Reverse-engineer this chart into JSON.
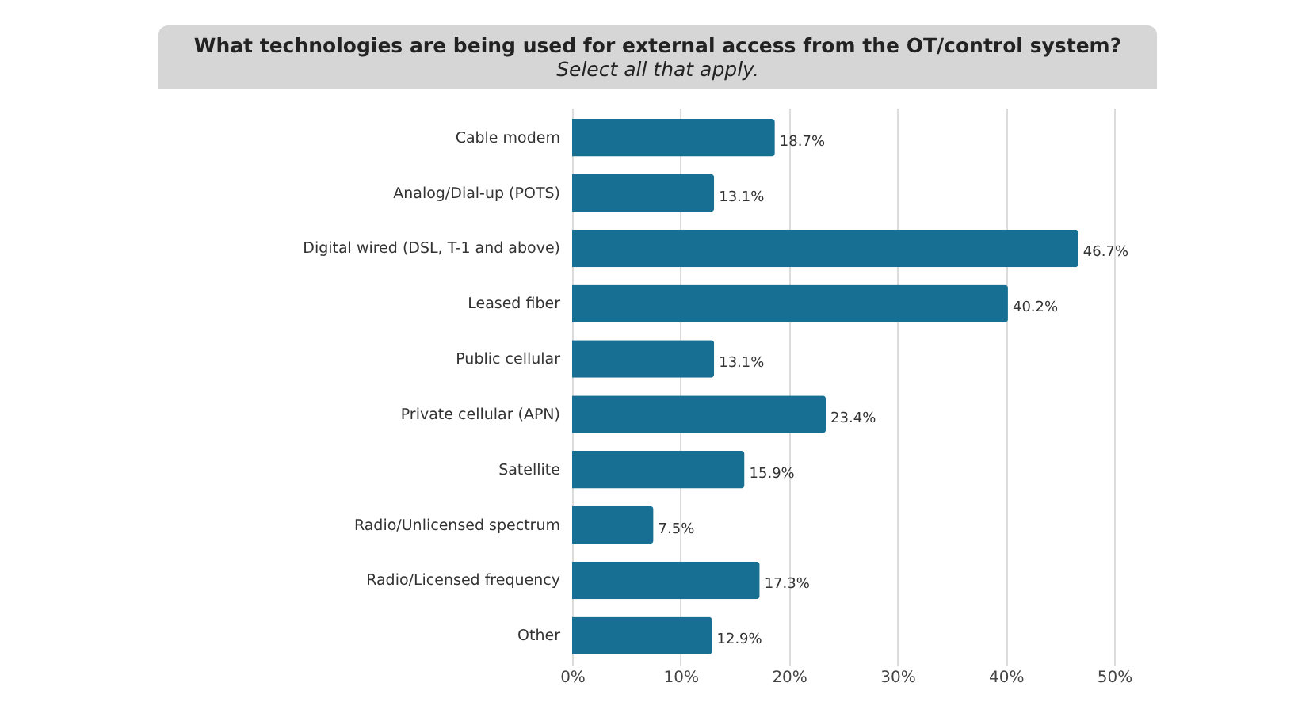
{
  "chart_data": {
    "type": "bar",
    "orientation": "horizontal",
    "title": "What technologies are being used for external access from the OT/control system?",
    "subtitle": "Select all that apply.",
    "categories": [
      "Cable modem",
      "Analog/Dial-up (POTS)",
      "Digital wired (DSL, T-1 and above)",
      "Leased fiber",
      "Public cellular",
      "Private cellular (APN)",
      "Satellite",
      "Radio/Unlicensed spectrum",
      "Radio/Licensed frequency",
      "Other"
    ],
    "values": [
      18.7,
      13.1,
      46.7,
      40.2,
      13.1,
      23.4,
      15.9,
      7.5,
      17.3,
      12.9
    ],
    "value_labels": [
      "18.7%",
      "13.1%",
      "46.7%",
      "40.2%",
      "13.1%",
      "23.4%",
      "15.9%",
      "7.5%",
      "17.3%",
      "12.9%"
    ],
    "color": "#176f93",
    "xlim": [
      0,
      50
    ],
    "xticks": [
      {
        "value": 0,
        "label": "0%"
      },
      {
        "value": 10,
        "label": "10%"
      },
      {
        "value": 20,
        "label": "20%"
      },
      {
        "value": 30,
        "label": "30%"
      },
      {
        "value": 40,
        "label": "40%"
      },
      {
        "value": 50,
        "label": "50%"
      }
    ],
    "grid": "x"
  }
}
